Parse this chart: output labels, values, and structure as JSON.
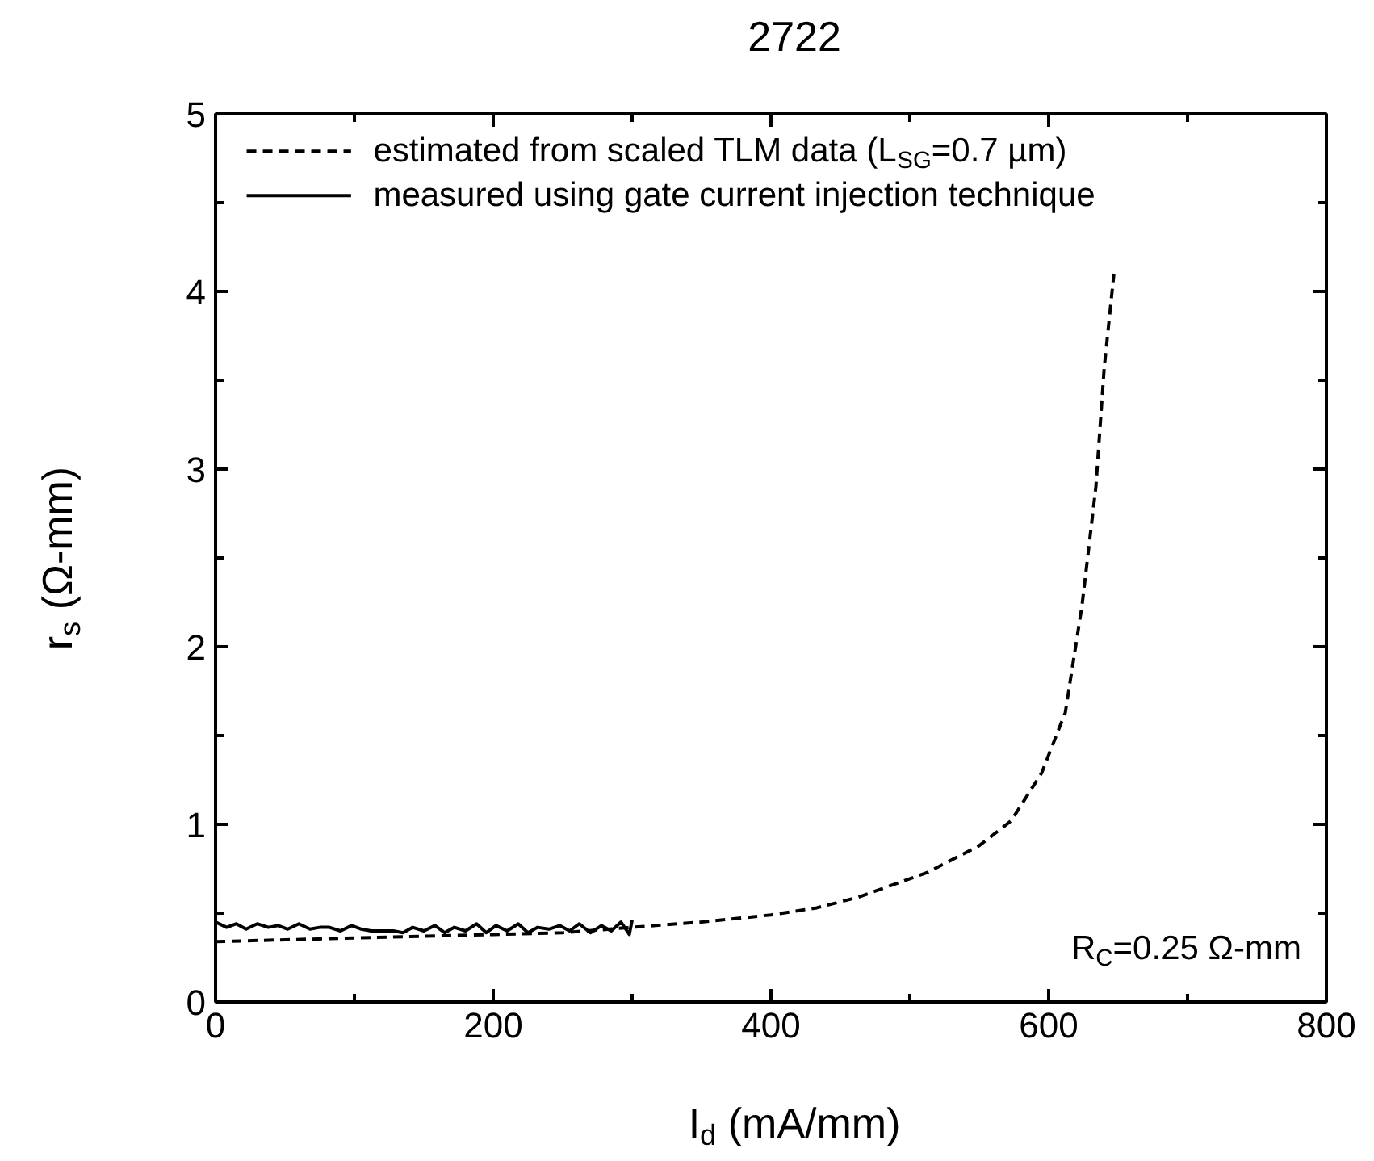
{
  "chart_data": {
    "type": "line",
    "title": "2722",
    "xlabel": "I$_{d}$ (mA/mm)",
    "ylabel": "r$_{s}$ (Ω-mm)",
    "xlim": [
      0,
      800
    ],
    "ylim": [
      0,
      5
    ],
    "xticks": [
      0,
      {
        "value": 100,
        "label": null
      },
      200,
      {
        "value": 300,
        "label": null
      },
      400,
      {
        "value": 500,
        "label": null
      },
      600,
      {
        "value": 700,
        "label": null
      },
      800
    ],
    "yticks": [
      0,
      {
        "value": 0.5,
        "label": null
      },
      1,
      {
        "value": 1.5,
        "label": null
      },
      2,
      {
        "value": 2.5,
        "label": null
      },
      3,
      {
        "value": 3.5,
        "label": null
      },
      4,
      {
        "value": 4.5,
        "label": null
      },
      5
    ],
    "grid": false,
    "legend": "top left",
    "marker": "none",
    "series": [
      {
        "name": "estimated from scaled TLM data (L$_{SG}$=0.7 µm)",
        "color": "#000000",
        "line_style": "dashed",
        "x": [
          0,
          50,
          100,
          150,
          200,
          250,
          300,
          350,
          400,
          433,
          463,
          513,
          550,
          573,
          595,
          612,
          624,
          634,
          640,
          647
        ],
        "values": [
          0.34,
          0.35,
          0.36,
          0.37,
          0.38,
          0.39,
          0.42,
          0.45,
          0.49,
          0.53,
          0.59,
          0.73,
          0.88,
          1.02,
          1.29,
          1.63,
          2.23,
          2.9,
          3.57,
          4.1
        ]
      },
      {
        "name": "measured using gate current injection technique",
        "color": "#000000",
        "line_style": "solid",
        "x": [
          0,
          8,
          15,
          22,
          30,
          38,
          45,
          52,
          60,
          68,
          75,
          82,
          90,
          98,
          105,
          112,
          120,
          128,
          135,
          142,
          150,
          158,
          165,
          172,
          180,
          188,
          195,
          202,
          210,
          218,
          225,
          232,
          240,
          248,
          255,
          262,
          270,
          278,
          285,
          292,
          298,
          300
        ],
        "values": [
          0.45,
          0.42,
          0.44,
          0.41,
          0.44,
          0.42,
          0.43,
          0.41,
          0.44,
          0.41,
          0.42,
          0.42,
          0.4,
          0.43,
          0.41,
          0.4,
          0.4,
          0.4,
          0.39,
          0.42,
          0.4,
          0.43,
          0.39,
          0.42,
          0.4,
          0.44,
          0.39,
          0.43,
          0.4,
          0.44,
          0.39,
          0.42,
          0.41,
          0.43,
          0.4,
          0.44,
          0.39,
          0.43,
          0.4,
          0.45,
          0.38,
          0.46
        ]
      }
    ],
    "annotations": [
      "R$_{C}$=0.25 Ω-mm"
    ]
  }
}
